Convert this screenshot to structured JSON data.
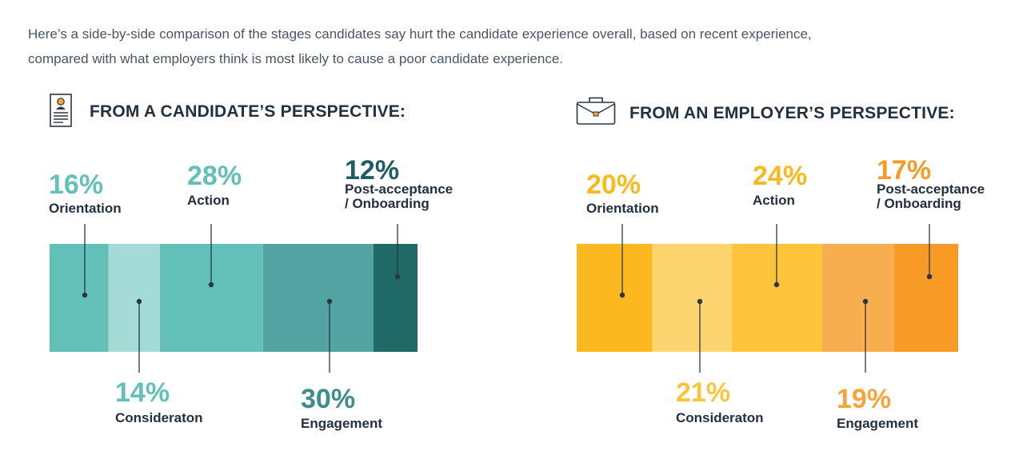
{
  "intro": {
    "line1": "Here’s a side-by-side comparison of the stages candidates say hurt the candidate experience overall, based on recent experience,",
    "line2": "compared with what employers think is most likely to cause a poor candidate experience."
  },
  "panels": {
    "candidate": {
      "title": "FROM A CANDIDATE’S PERSPECTIVE:",
      "icon": "resume-document-icon"
    },
    "employer": {
      "title": "FROM AN EMPLOYER’S PERSPECTIVE:",
      "icon": "briefcase-icon"
    }
  },
  "chart_data": [
    {
      "type": "bar",
      "stacked": true,
      "orientation": "horizontal",
      "title": "FROM A CANDIDATE’S PERSPECTIVE:",
      "series": [
        {
          "name": "Orientation",
          "value": 16,
          "label": "16%",
          "color": "#63c0b9",
          "label_color": "#63c0b9"
        },
        {
          "name": "Consideraton",
          "value": 14,
          "label": "14%",
          "color": "#a4dbd6",
          "label_color": "#63c0b9"
        },
        {
          "name": "Action",
          "value": 28,
          "label": "28%",
          "color": "#63c0b9",
          "label_color": "#63c0b9"
        },
        {
          "name": "Engagement",
          "value": 30,
          "label": "30%",
          "color": "#52a3a2",
          "label_color": "#3f8b8e"
        },
        {
          "name": "Post-acceptance / Onboarding",
          "name_lines": [
            "Post-acceptance",
            "/ Onboarding"
          ],
          "value": 12,
          "label": "12%",
          "color": "#1f6966",
          "label_color": "#1f5e60"
        }
      ]
    },
    {
      "type": "bar",
      "stacked": true,
      "orientation": "horizontal",
      "title": "FROM AN EMPLOYER’S PERSPECTIVE:",
      "series": [
        {
          "name": "Orientation",
          "value": 20,
          "label": "20%",
          "color": "#fbb91f",
          "label_color": "#fbb91f"
        },
        {
          "name": "Consideraton",
          "value": 21,
          "label": "21%",
          "color": "#fdd570",
          "label_color": "#fbc53a"
        },
        {
          "name": "Action",
          "value": 24,
          "label": "24%",
          "color": "#fdc43c",
          "label_color": "#fbb91f"
        },
        {
          "name": "Engagement",
          "value": 19,
          "label": "19%",
          "color": "#f7ae4f",
          "label_color": "#f7a43a"
        },
        {
          "name": "Post-acceptance / Onboarding",
          "name_lines": [
            "Post-acceptance",
            "/ Onboarding"
          ],
          "value": 17,
          "label": "17%",
          "color": "#f79b26",
          "label_color": "#f79b26"
        }
      ]
    }
  ]
}
